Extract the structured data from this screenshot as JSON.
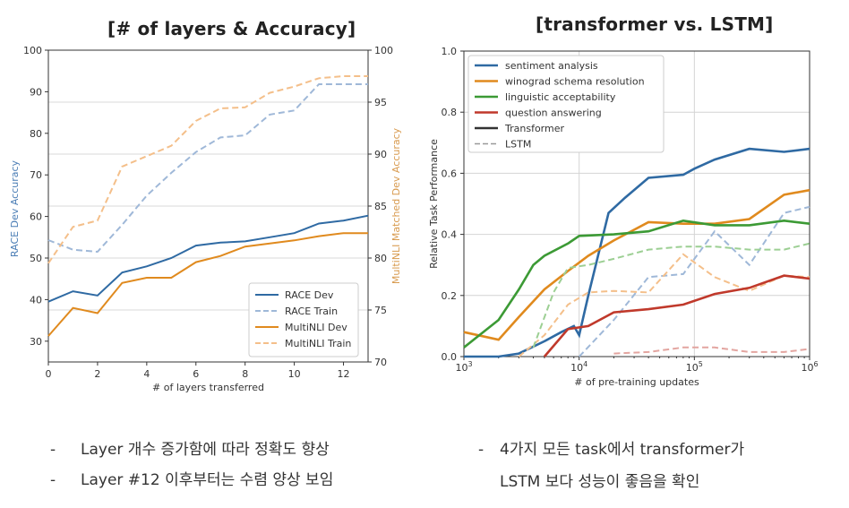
{
  "slide": {
    "left_title": "[# of layers & Accuracy]",
    "right_title": "[transformer vs. LSTM]",
    "left_notes": [
      "Layer 개수 증가함에 따라 정확도 향상",
      "Layer #12 이후부터는 수렴 양상 보임"
    ],
    "right_notes": [
      "4가지  모든  task에서  transformer가",
      "LSTM 보다 성능이 좋음을 확인"
    ],
    "bullet": "-"
  },
  "chart_data": [
    {
      "type": "line",
      "title": "",
      "xlabel": "# of layers transferred",
      "ylabel": "RACE Dev Accuracy",
      "y2label": "MultiNLI Matched Dev Accuracy",
      "xlim": [
        0,
        13
      ],
      "ylim": [
        25,
        100
      ],
      "y2lim": [
        70,
        100
      ],
      "x_ticks": [
        "0",
        "2",
        "4",
        "6",
        "8",
        "10",
        "12"
      ],
      "y_ticks": [
        "30",
        "40",
        "50",
        "60",
        "70",
        "80",
        "90",
        "100"
      ],
      "y2_ticks": [
        "70",
        "75",
        "80",
        "85",
        "90",
        "95",
        "100"
      ],
      "legend_position": "bottom-right",
      "grid": "y",
      "x": [
        0,
        1,
        2,
        3,
        4,
        5,
        6,
        7,
        8,
        9,
        10,
        11,
        12,
        13
      ],
      "series": [
        {
          "name": "RACE Dev",
          "axis": "left",
          "color": "#2f6aa3",
          "dash": false,
          "values": [
            39.5,
            42,
            41,
            46.5,
            48,
            50,
            53,
            53.7,
            54,
            55,
            56,
            58.3,
            59,
            60.2
          ]
        },
        {
          "name": "RACE Train",
          "axis": "left",
          "color": "#9fb8d8",
          "dash": true,
          "values": [
            54.3,
            52,
            51.5,
            58,
            65,
            70.5,
            75.5,
            79,
            79.5,
            84.5,
            85.5,
            91.8,
            91.8,
            91.8
          ]
        },
        {
          "name": "MultiNLI Dev",
          "axis": "right",
          "color": "#e08a1e",
          "dash": false,
          "values": [
            72.5,
            75.2,
            74.7,
            77.6,
            78.1,
            78.1,
            79.6,
            80.2,
            81.1,
            81.4,
            81.7,
            82.1,
            82.4,
            82.4
          ]
        },
        {
          "name": "MultiNLI Train",
          "axis": "right",
          "color": "#f4bf8a",
          "dash": true,
          "values": [
            79.5,
            83,
            83.6,
            88.8,
            89.8,
            90.8,
            93.2,
            94.4,
            94.5,
            95.9,
            96.5,
            97.3,
            97.5,
            97.5
          ]
        }
      ]
    },
    {
      "type": "line",
      "title": "",
      "xlabel": "# of pre-training updates",
      "ylabel": "Relative Task Performance",
      "x_scale": "log",
      "xlim": [
        1000,
        1000000
      ],
      "ylim": [
        0,
        1.0
      ],
      "x_ticks": [
        {
          "base": "10",
          "exp": "3"
        },
        {
          "base": "10",
          "exp": "4"
        },
        {
          "base": "10",
          "exp": "5"
        },
        {
          "base": "10",
          "exp": "6"
        }
      ],
      "y_ticks": [
        "0.0",
        "0.2",
        "0.4",
        "0.6",
        "0.8",
        "1.0"
      ],
      "legend_position": "top-left",
      "grid": "both",
      "legend_style": [
        {
          "name": "Transformer",
          "color": "#333333",
          "dash": false
        },
        {
          "name": "LSTM",
          "color": "#999999",
          "dash": true
        }
      ],
      "series": [
        {
          "name": "sentiment analysis",
          "model": "Transformer",
          "color": "#2f6aa3",
          "dash": false,
          "x": [
            1000,
            2000,
            3000,
            5000,
            7000,
            9000,
            10000,
            12000,
            18000,
            25000,
            40000,
            80000,
            100000,
            150000,
            300000,
            600000,
            1000000
          ],
          "values": [
            0,
            0,
            0.01,
            0.05,
            0.08,
            0.1,
            0.07,
            0.2,
            0.47,
            0.52,
            0.585,
            0.595,
            0.615,
            0.645,
            0.68,
            0.67,
            0.68
          ]
        },
        {
          "name": "sentiment analysis",
          "model": "LSTM",
          "color": "#9fb8d8",
          "dash": true,
          "x": [
            10000,
            20000,
            40000,
            80000,
            150000,
            300000,
            600000,
            1000000
          ],
          "values": [
            0.0,
            0.12,
            0.26,
            0.27,
            0.41,
            0.3,
            0.47,
            0.49
          ]
        },
        {
          "name": "winograd schema resolution",
          "model": "Transformer",
          "color": "#e08a1e",
          "dash": false,
          "x": [
            1000,
            2000,
            3000,
            5000,
            8000,
            12000,
            20000,
            40000,
            80000,
            150000,
            300000,
            600000,
            1000000
          ],
          "values": [
            0.08,
            0.055,
            0.13,
            0.22,
            0.28,
            0.33,
            0.38,
            0.44,
            0.435,
            0.435,
            0.45,
            0.53,
            0.545
          ]
        },
        {
          "name": "winograd schema resolution",
          "model": "LSTM",
          "color": "#f4bf8a",
          "dash": true,
          "x": [
            3000,
            5000,
            8000,
            12000,
            20000,
            40000,
            80000,
            150000,
            300000,
            600000,
            1000000
          ],
          "values": [
            0.0,
            0.07,
            0.17,
            0.21,
            0.215,
            0.21,
            0.335,
            0.26,
            0.215,
            0.265,
            0.26
          ]
        },
        {
          "name": "linguistic acceptability",
          "model": "Transformer",
          "color": "#3c9a35",
          "dash": false,
          "x": [
            1000,
            2000,
            3000,
            4000,
            5000,
            8000,
            10000,
            20000,
            40000,
            80000,
            150000,
            300000,
            600000,
            1000000
          ],
          "values": [
            0.03,
            0.12,
            0.22,
            0.3,
            0.33,
            0.37,
            0.395,
            0.4,
            0.41,
            0.445,
            0.43,
            0.43,
            0.445,
            0.435
          ]
        },
        {
          "name": "linguistic acceptability",
          "model": "LSTM",
          "color": "#9ccf93",
          "dash": true,
          "x": [
            4000,
            6000,
            8000,
            12000,
            20000,
            40000,
            80000,
            150000,
            300000,
            600000,
            1000000
          ],
          "values": [
            0.03,
            0.21,
            0.29,
            0.3,
            0.32,
            0.35,
            0.36,
            0.36,
            0.35,
            0.35,
            0.37
          ]
        },
        {
          "name": "question answering",
          "model": "Transformer",
          "color": "#c0392b",
          "dash": false,
          "x": [
            5000,
            8000,
            12000,
            20000,
            40000,
            80000,
            150000,
            300000,
            600000,
            1000000
          ],
          "values": [
            0.0,
            0.09,
            0.1,
            0.145,
            0.155,
            0.17,
            0.205,
            0.225,
            0.265,
            0.255
          ]
        },
        {
          "name": "question answering",
          "model": "LSTM",
          "color": "#e3a5a0",
          "dash": true,
          "x": [
            20000,
            40000,
            80000,
            150000,
            300000,
            600000,
            1000000
          ],
          "values": [
            0.01,
            0.015,
            0.03,
            0.03,
            0.015,
            0.015,
            0.025
          ]
        }
      ]
    }
  ]
}
